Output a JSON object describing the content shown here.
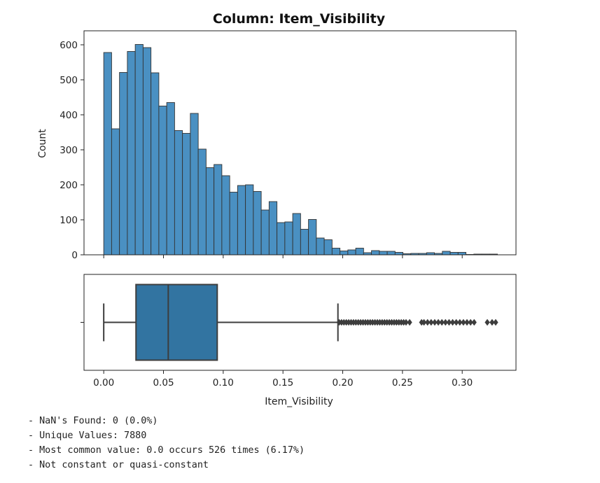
{
  "chart_data": [
    {
      "type": "histogram",
      "title": "Column: Item_Visibility",
      "xlabel": "",
      "ylabel": "Count",
      "ylim": [
        0,
        640
      ],
      "yticks": [
        0,
        100,
        200,
        300,
        400,
        500,
        600
      ],
      "xlim": [
        -0.0165,
        0.345
      ],
      "bin_width": 0.00659,
      "bin_start": 0.0,
      "values": [
        578,
        360,
        521,
        581,
        601,
        592,
        520,
        425,
        435,
        355,
        347,
        404,
        302,
        249,
        258,
        226,
        179,
        198,
        200,
        181,
        128,
        152,
        92,
        94,
        118,
        73,
        101,
        48,
        43,
        19,
        11,
        14,
        19,
        6,
        12,
        10,
        10,
        7,
        3,
        4,
        4,
        6,
        4,
        10,
        7,
        7,
        1,
        2,
        2,
        2
      ],
      "color": "#4a90c2",
      "edge_color": "#333333"
    },
    {
      "type": "boxplot",
      "xlabel": "Item_Visibility",
      "xticks": [
        "0.00",
        "0.05",
        "0.10",
        "0.15",
        "0.20",
        "0.25",
        "0.30"
      ],
      "xtick_values": [
        0.0,
        0.05,
        0.1,
        0.15,
        0.2,
        0.25,
        0.3
      ],
      "whisker_low": 0.0,
      "q1": 0.027,
      "median": 0.054,
      "q3": 0.095,
      "whisker_high": 0.196,
      "outliers": [
        0.197,
        0.199,
        0.201,
        0.203,
        0.205,
        0.207,
        0.209,
        0.211,
        0.213,
        0.215,
        0.217,
        0.219,
        0.221,
        0.223,
        0.225,
        0.227,
        0.229,
        0.231,
        0.233,
        0.235,
        0.237,
        0.239,
        0.241,
        0.243,
        0.245,
        0.247,
        0.249,
        0.251,
        0.253,
        0.256,
        0.266,
        0.268,
        0.271,
        0.274,
        0.277,
        0.28,
        0.283,
        0.286,
        0.289,
        0.292,
        0.295,
        0.298,
        0.301,
        0.304,
        0.307,
        0.31,
        0.321,
        0.325,
        0.328
      ],
      "color": "#3274a1",
      "line_color": "#3d3d3d"
    }
  ],
  "notes": [
    "- NaN's Found: 0 (0.0%)",
    "- Unique Values: 7880",
    "- Most common value: 0.0 occurs 526 times (6.17%)",
    "- Not constant or quasi-constant"
  ]
}
